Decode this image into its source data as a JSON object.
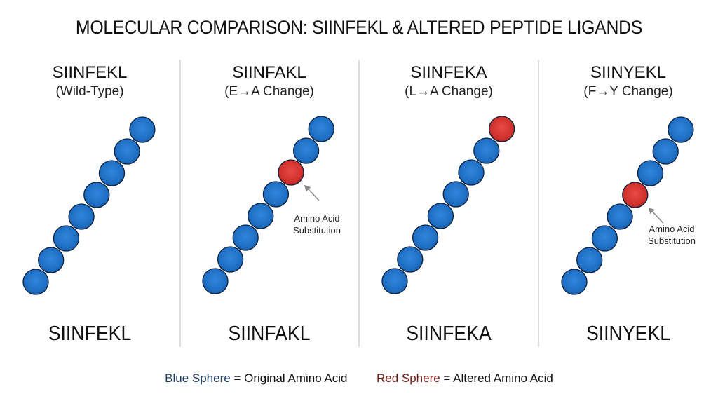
{
  "title": "MOLECULAR COMPARISON: SIINFEKL & ALTERED PEPTIDE LIGANDS",
  "colors": {
    "original_sphere": "#1f6fc4",
    "altered_sphere": "#d0312d",
    "sphere_outline": "#0d2240",
    "divider": "#dedede",
    "legend_blue_text": "#1f3a63",
    "legend_red_text": "#7a1c1c"
  },
  "panels": [
    {
      "name": "SIINFEKL",
      "subtitle": "(Wild-Type)",
      "sequence": "SIINFEKL",
      "altered_index": null,
      "annotation": null,
      "spheres": 8
    },
    {
      "name": "SIINFAKL",
      "subtitle": "(E→A Change)",
      "sequence": "SIINFAKL",
      "altered_index": 5,
      "annotation": {
        "line1": "Amino Acid",
        "line2": "Substitution"
      },
      "spheres": 8
    },
    {
      "name": "SIINFEKA",
      "subtitle": "(L→A Change)",
      "sequence": "SIINFEKA",
      "altered_index": 7,
      "annotation": null,
      "spheres": 8
    },
    {
      "name": "SIINYEKL",
      "subtitle": "(F→Y Change)",
      "sequence": "SIINYEKL",
      "altered_index": 4,
      "annotation": {
        "line1": "Amino Acid",
        "line2": "Substitution"
      },
      "spheres": 8
    }
  ],
  "legend": {
    "blue_label": "Blue Sphere",
    "blue_desc": " = Original Amino Acid",
    "red_label": "Red Sphere",
    "red_desc": " = Altered Amino Acid"
  }
}
